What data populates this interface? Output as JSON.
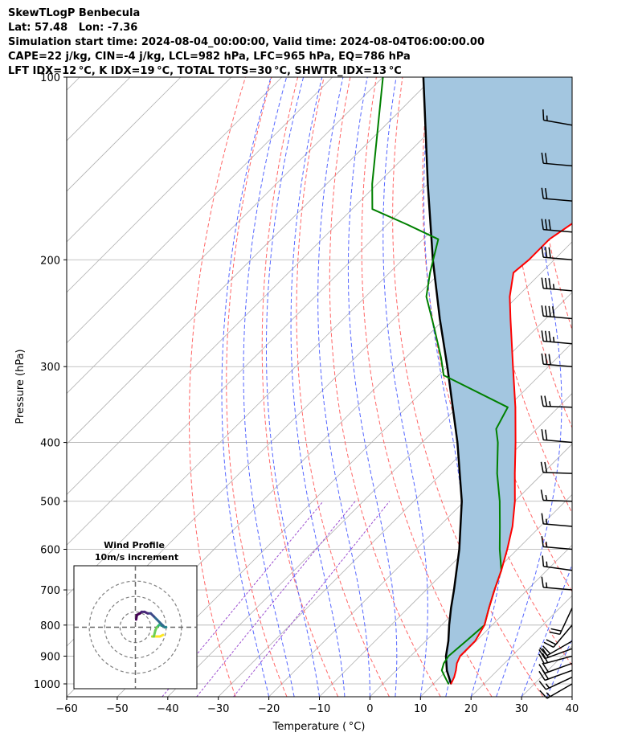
{
  "header": {
    "line1": "SkewTLogP Benbecula",
    "line2": "Lat: 57.48   Lon: -7.36",
    "line3": "Simulation start time: 2024-08-04_00:00:00, Valid time: 2024-08-04T06:00:00.00",
    "line4": "CAPE=22 j/kg, CIN=-4 j/kg, LCL=982 hPa, LFC=965 hPa, EQ=786 hPa",
    "line5": "LFT IDX=12 °C, K IDX=19 °C, TOTAL TOTS=30 °C, SHWTR_IDX=13 °C"
  },
  "chart_data": {
    "type": "line",
    "subtype": "skew-t log-p",
    "xlabel": "Temperature ( °C)",
    "ylabel": "Pressure (hPa)",
    "xlim": [
      -60,
      40
    ],
    "ylim": [
      1050,
      100
    ],
    "y_scale": "log",
    "grid": true,
    "x_ticks": [
      -60,
      -50,
      -40,
      -30,
      -20,
      -10,
      0,
      10,
      20,
      30,
      40
    ],
    "x_tick_labels": [
      "−60",
      "−50",
      "−40",
      "−30",
      "−20",
      "−10",
      "0",
      "10",
      "20",
      "30",
      "40"
    ],
    "y_ticks": [
      1000,
      900,
      800,
      700,
      600,
      500,
      400,
      300,
      200,
      100
    ],
    "y_tick_labels": [
      "1000",
      "900",
      "800",
      "700",
      "600",
      "500",
      "400",
      "300",
      "200",
      "100"
    ],
    "colors": {
      "temperature": "#ff0000",
      "dewpoint": "#008000",
      "parcel": "#000000",
      "cape_fill": "#a3c6e0",
      "dry_adiabat": "#ff6666",
      "moist_adiabat": "#5566ff",
      "mixing_ratio": "#9c4fd0",
      "isotherm": "#b0b0b0"
    },
    "series": [
      {
        "key": "temperature",
        "pressure": [
          1000,
          975,
          950,
          925,
          900,
          850,
          800,
          750,
          700,
          650,
          600,
          550,
          500,
          450,
          400,
          350,
          300,
          250,
          230,
          210,
          200,
          185,
          170,
          150,
          130,
          115,
          100
        ],
        "temperature": [
          13.5,
          12.8,
          11.8,
          10.6,
          9.8,
          9.8,
          8.5,
          6.0,
          3.5,
          1.0,
          -2.0,
          -5.5,
          -10.0,
          -15.5,
          -21.5,
          -28.5,
          -37.0,
          -47.0,
          -51.5,
          -55.5,
          -55.0,
          -55.0,
          -53.0,
          -52.0,
          -52.0,
          -52.5,
          -54.0
        ]
      },
      {
        "key": "dewpoint",
        "pressure": [
          1000,
          975,
          950,
          925,
          900,
          850,
          800,
          750,
          700,
          650,
          600,
          550,
          500,
          450,
          400,
          380,
          350,
          310,
          290,
          260,
          230,
          210,
          185,
          175,
          165,
          150,
          100
        ],
        "temperature": [
          13.0,
          11.0,
          9.0,
          8.0,
          7.5,
          8.0,
          8.5,
          6.0,
          3.5,
          1.0,
          -3.5,
          -8.0,
          -13.0,
          -19.0,
          -25.0,
          -28.0,
          -30.0,
          -49.0,
          -53.0,
          -60.0,
          -68.0,
          -72.0,
          -77.0,
          -86.0,
          -96.0,
          -101.0,
          -120.0
        ]
      },
      {
        "key": "parcel",
        "pressure": [
          1000,
          950,
          900,
          850,
          800,
          750,
          700,
          600,
          500,
          400,
          300,
          250,
          200,
          150,
          100
        ],
        "temperature": [
          13.5,
          10.0,
          7.0,
          4.5,
          1.5,
          -1.5,
          -4.5,
          -11.5,
          -20.5,
          -33.0,
          -50.0,
          -61.0,
          -74.0,
          -90.0,
          -112.0
        ]
      }
    ],
    "wind_barbs": {
      "pressure": [
        1000,
        975,
        950,
        925,
        900,
        875,
        850,
        800,
        750,
        700,
        650,
        600,
        550,
        500,
        450,
        400,
        350,
        300,
        275,
        250,
        225,
        200,
        180,
        160,
        140,
        120
      ],
      "speed_kt": [
        15,
        15,
        20,
        20,
        20,
        20,
        20,
        20,
        20,
        15,
        15,
        15,
        15,
        15,
        20,
        20,
        25,
        30,
        35,
        40,
        35,
        30,
        30,
        20,
        20,
        15
      ],
      "direction_deg": [
        240,
        245,
        250,
        250,
        255,
        250,
        240,
        220,
        205,
        275,
        278,
        275,
        275,
        272,
        272,
        275,
        272,
        275,
        275,
        275,
        275,
        275,
        275,
        275,
        275,
        280
      ]
    },
    "inset": {
      "title_line1": "Wind Profile",
      "title_line2": "10m/s increment",
      "type": "hodograph",
      "rings_ms": [
        10,
        20,
        30
      ],
      "range_ms": 40,
      "u": [
        18,
        16,
        13,
        12,
        11,
        12,
        13,
        14,
        15,
        16,
        17,
        18,
        19,
        20,
        19,
        18,
        16,
        14,
        12,
        10,
        8,
        6,
        4,
        3,
        1,
        0.5
      ],
      "v": [
        -5,
        -6,
        -6,
        -6,
        -6,
        -6,
        -2,
        0,
        1,
        2,
        1,
        1,
        0,
        0,
        0,
        1,
        3,
        5,
        7,
        9,
        9,
        10,
        10,
        9,
        8,
        5
      ]
    }
  }
}
